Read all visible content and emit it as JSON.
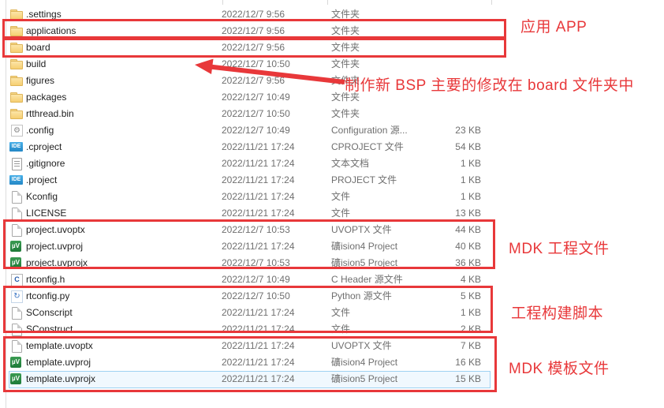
{
  "file_list": {
    "files": [
      {
        "name": ".settings",
        "icon": "folder",
        "date": "2022/12/7 9:56",
        "type": "文件夹",
        "size": ""
      },
      {
        "name": "applications",
        "icon": "folder",
        "date": "2022/12/7 9:56",
        "type": "文件夹",
        "size": ""
      },
      {
        "name": "board",
        "icon": "folder",
        "date": "2022/12/7 9:56",
        "type": "文件夹",
        "size": ""
      },
      {
        "name": "build",
        "icon": "folder",
        "date": "2022/12/7 10:50",
        "type": "文件夹",
        "size": ""
      },
      {
        "name": "figures",
        "icon": "folder",
        "date": "2022/12/7 9:56",
        "type": "文件夹",
        "size": ""
      },
      {
        "name": "packages",
        "icon": "folder",
        "date": "2022/12/7 10:49",
        "type": "文件夹",
        "size": ""
      },
      {
        "name": "rtthread.bin",
        "icon": "folder",
        "date": "2022/12/7 10:50",
        "type": "文件夹",
        "size": ""
      },
      {
        "name": ".config",
        "icon": "gear",
        "date": "2022/12/7 10:49",
        "type": "Configuration 源...",
        "size": "23 KB"
      },
      {
        "name": ".cproject",
        "icon": "ide",
        "date": "2022/11/21 17:24",
        "type": "CPROJECT 文件",
        "size": "54 KB"
      },
      {
        "name": ".gitignore",
        "icon": "textdoc",
        "date": "2022/11/21 17:24",
        "type": "文本文档",
        "size": "1 KB"
      },
      {
        "name": ".project",
        "icon": "ide",
        "date": "2022/11/21 17:24",
        "type": "PROJECT 文件",
        "size": "1 KB"
      },
      {
        "name": "Kconfig",
        "icon": "file",
        "date": "2022/11/21 17:24",
        "type": "文件",
        "size": "1 KB"
      },
      {
        "name": "LICENSE",
        "icon": "file",
        "date": "2022/11/21 17:24",
        "type": "文件",
        "size": "13 KB"
      },
      {
        "name": "project.uvoptx",
        "icon": "file",
        "date": "2022/12/7 10:53",
        "type": "UVOPTX 文件",
        "size": "44 KB"
      },
      {
        "name": "project.uvproj",
        "icon": "keil",
        "date": "2022/11/21 17:24",
        "type": "礦ision4 Project",
        "size": "40 KB"
      },
      {
        "name": "project.uvprojx",
        "icon": "keil",
        "date": "2022/12/7 10:53",
        "type": "礦ision5 Project",
        "size": "36 KB"
      },
      {
        "name": "rtconfig.h",
        "icon": "cfile",
        "date": "2022/12/7 10:49",
        "type": "C Header 源文件",
        "size": "4 KB"
      },
      {
        "name": "rtconfig.py",
        "icon": "py",
        "date": "2022/12/7 10:50",
        "type": "Python 源文件",
        "size": "5 KB"
      },
      {
        "name": "SConscript",
        "icon": "file",
        "date": "2022/11/21 17:24",
        "type": "文件",
        "size": "1 KB"
      },
      {
        "name": "SConstruct",
        "icon": "file",
        "date": "2022/11/21 17:24",
        "type": "文件",
        "size": "2 KB"
      },
      {
        "name": "template.uvoptx",
        "icon": "file",
        "date": "2022/11/21 17:24",
        "type": "UVOPTX 文件",
        "size": "7 KB"
      },
      {
        "name": "template.uvproj",
        "icon": "keil",
        "date": "2022/11/21 17:24",
        "type": "礦ision4 Project",
        "size": "16 KB"
      },
      {
        "name": "template.uvprojx",
        "icon": "keil",
        "date": "2022/11/21 17:24",
        "type": "礦ision5 Project",
        "size": "15 KB",
        "selected": true
      }
    ]
  },
  "icon_glyphs": {
    "folder": "",
    "file": "",
    "textdoc": "",
    "gear": "⚙",
    "ide": "IDE",
    "keil": "µV",
    "cfile": "C",
    "py": "↻"
  },
  "icon_names": {
    "folder": "folder-icon",
    "file": "generic-file-icon",
    "textdoc": "text-document-icon",
    "gear": "gear-icon",
    "ide": "eclipse-ide-icon",
    "keil": "keil-uvision-icon",
    "cfile": "c-header-icon",
    "py": "python-icon"
  },
  "annotations": {
    "red_color": "#e8383a",
    "app_label": "应用 APP",
    "board_note": "制作新 BSP 主要的修改在 board 文件夹中",
    "mdk_project_label": "MDK 工程文件",
    "build_script_label": "工程构建脚本",
    "mdk_template_label": "MDK 模板文件"
  }
}
